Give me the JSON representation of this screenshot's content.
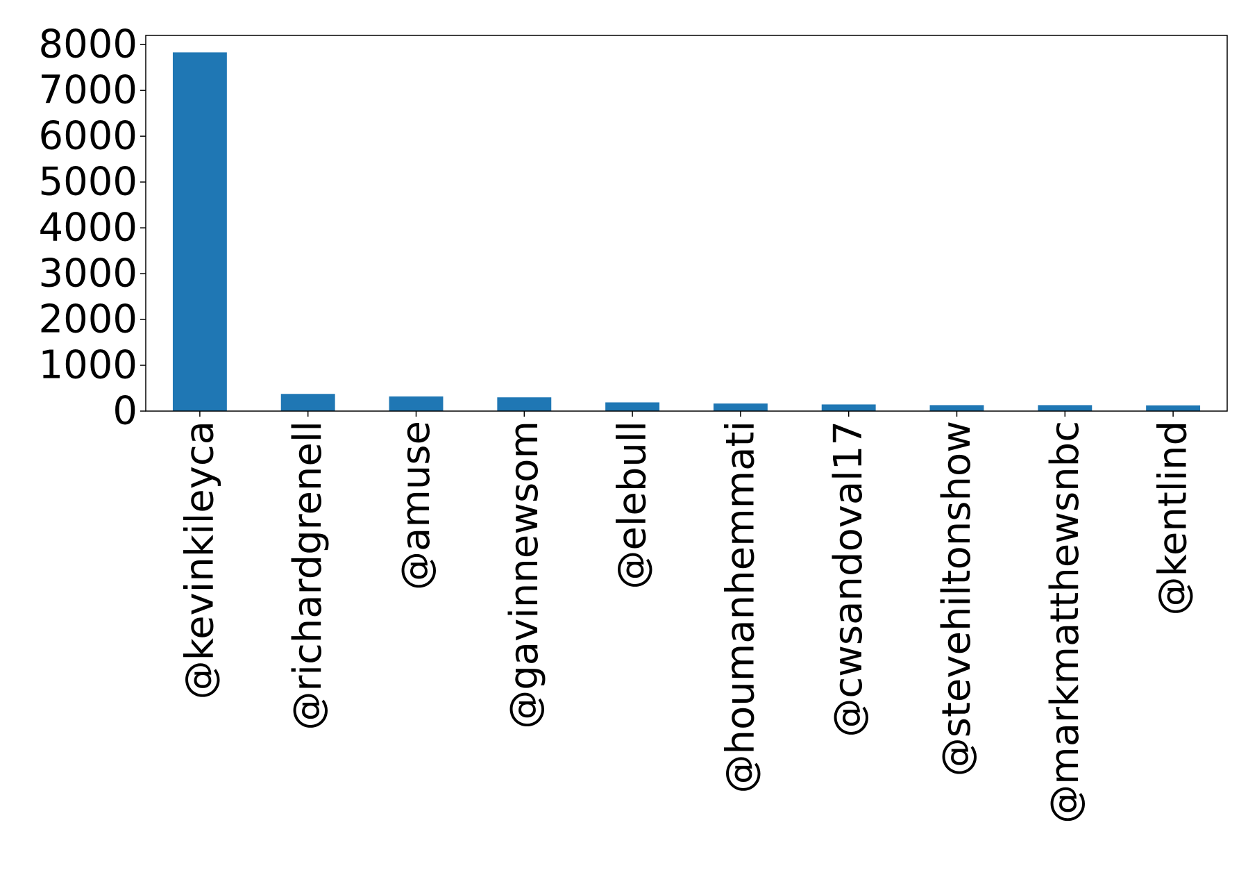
{
  "chart_data": {
    "type": "bar",
    "title": "",
    "xlabel": "",
    "ylabel": "",
    "categories": [
      "@kevinkileyca",
      "@richardgrenell",
      "@amuse",
      "@gavinnewsom",
      "@elebull",
      "@houmanhemmati",
      "@cwsandoval17",
      "@stevehiltonshow",
      "@markmatthewsnbc",
      "@kentlind"
    ],
    "values": [
      7830,
      375,
      320,
      300,
      190,
      165,
      145,
      130,
      130,
      125
    ],
    "ylim": [
      0,
      8200
    ],
    "yticks": [
      0,
      1000,
      2000,
      3000,
      4000,
      5000,
      6000,
      7000,
      8000
    ],
    "ytick_labels": [
      "0",
      "1000",
      "2000",
      "3000",
      "4000",
      "5000",
      "6000",
      "7000",
      "8000"
    ],
    "bar_color": "#1f77b4",
    "grid": false,
    "legend": "none"
  }
}
